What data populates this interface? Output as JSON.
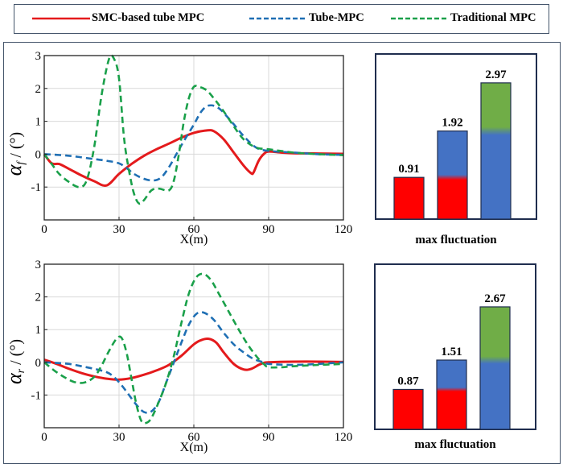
{
  "legend": {
    "items": [
      {
        "label": "SMC-based tube MPC",
        "color": "#e41a1c",
        "style": "solid"
      },
      {
        "label": "Tube-MPC",
        "color": "#1f6fb4",
        "style": "dashed"
      },
      {
        "label": "Traditional MPC",
        "color": "#1aa04a",
        "style": "dashed"
      }
    ]
  },
  "chart_data": [
    {
      "type": "line",
      "id": "front",
      "ylabel": "α_f / (°)",
      "ylabel_main": "α",
      "ylabel_sub": "f",
      "ylabel_rest": " / (°)",
      "xlabel": "X(m)",
      "xlim": [
        0,
        120
      ],
      "ylim": [
        -2,
        3
      ],
      "xticks": [
        0,
        30,
        60,
        90,
        120
      ],
      "yticks": [
        -1,
        0,
        1,
        2,
        3
      ],
      "grid": true,
      "series": [
        {
          "name": "SMC-based tube MPC",
          "color": "#e41a1c",
          "style": "solid",
          "x": [
            0,
            3,
            6,
            10,
            15,
            20,
            25,
            30,
            35,
            40,
            45,
            50,
            55,
            60,
            65,
            68,
            72,
            76,
            80,
            83,
            84,
            86,
            88,
            90,
            95,
            100,
            110,
            120
          ],
          "y": [
            0,
            -0.28,
            -0.3,
            -0.45,
            -0.65,
            -0.82,
            -0.95,
            -0.6,
            -0.3,
            -0.05,
            0.15,
            0.32,
            0.5,
            0.65,
            0.72,
            0.7,
            0.45,
            0.05,
            -0.35,
            -0.58,
            -0.55,
            -0.2,
            0,
            0.08,
            0.05,
            0.03,
            0.02,
            0.01
          ]
        },
        {
          "name": "Tube-MPC",
          "color": "#1f6fb4",
          "style": "dashed",
          "x": [
            0,
            10,
            20,
            25,
            30,
            33,
            36,
            40,
            44,
            47,
            50,
            53,
            56,
            60,
            63,
            66,
            70,
            75,
            80,
            85,
            90,
            100,
            110,
            120
          ],
          "y": [
            0,
            -0.05,
            -0.15,
            -0.2,
            -0.28,
            -0.42,
            -0.6,
            -0.75,
            -0.8,
            -0.7,
            -0.4,
            0,
            0.4,
            0.9,
            1.3,
            1.48,
            1.4,
            1.0,
            0.55,
            0.2,
            0.1,
            0.05,
            0,
            -0.02
          ]
        },
        {
          "name": "Traditional MPC",
          "color": "#1aa04a",
          "style": "dashed",
          "x": [
            0,
            3,
            6,
            10,
            14,
            17,
            20,
            23,
            26,
            28,
            30,
            32,
            34,
            36,
            38,
            40,
            43,
            46,
            50,
            52,
            54,
            56,
            58,
            60,
            62,
            65,
            68,
            72,
            76,
            80,
            85,
            90,
            100,
            110,
            120
          ],
          "y": [
            0,
            -0.3,
            -0.6,
            -0.85,
            -1.0,
            -0.8,
            0.2,
            1.8,
            2.9,
            2.9,
            2.3,
            0.5,
            -0.5,
            -1.2,
            -1.5,
            -1.4,
            -1.1,
            -1.05,
            -1.1,
            -0.8,
            0.0,
            1.0,
            1.7,
            2.05,
            2.05,
            1.95,
            1.7,
            1.3,
            0.85,
            0.45,
            0.2,
            0.15,
            0.05,
            0.0,
            -0.03
          ]
        }
      ]
    },
    {
      "type": "bar",
      "id": "front-bar",
      "xlabel": "max fluctuation",
      "categories": [
        "SMC-based tube MPC",
        "Tube-MPC",
        "Traditional MPC"
      ],
      "values": [
        0.91,
        1.92,
        2.97
      ],
      "value_labels": [
        "0.91",
        "1.92",
        "2.97"
      ],
      "colors": [
        "#ff0000",
        "#4472c4",
        "#70ad47"
      ],
      "ylim": [
        0,
        3.6
      ]
    },
    {
      "type": "line",
      "id": "rear",
      "ylabel": "α_r / (°)",
      "ylabel_main": "α",
      "ylabel_sub": "r",
      "ylabel_rest": " / (°)",
      "xlabel": "X(m)",
      "xlim": [
        0,
        120
      ],
      "ylim": [
        -2,
        3
      ],
      "xticks": [
        0,
        30,
        60,
        90,
        120
      ],
      "yticks": [
        -1,
        0,
        1,
        2,
        3
      ],
      "grid": true,
      "series": [
        {
          "name": "SMC-based tube MPC",
          "color": "#e41a1c",
          "style": "solid",
          "x": [
            0,
            5,
            10,
            15,
            20,
            25,
            30,
            35,
            40,
            45,
            50,
            55,
            60,
            63,
            66,
            69,
            72,
            76,
            80,
            83,
            86,
            88,
            90,
            100,
            110,
            120
          ],
          "y": [
            0.08,
            -0.05,
            -0.2,
            -0.33,
            -0.43,
            -0.5,
            -0.53,
            -0.48,
            -0.38,
            -0.25,
            -0.08,
            0.2,
            0.55,
            0.68,
            0.72,
            0.6,
            0.3,
            -0.05,
            -0.22,
            -0.2,
            -0.08,
            -0.02,
            0.0,
            0.02,
            0.02,
            0.01
          ]
        },
        {
          "name": "Tube-MPC",
          "color": "#1f6fb4",
          "style": "dashed",
          "x": [
            0,
            5,
            10,
            15,
            20,
            25,
            28,
            31,
            34,
            37,
            40,
            43,
            46,
            49,
            52,
            55,
            58,
            61,
            64,
            68,
            72,
            76,
            80,
            84,
            88,
            90,
            100,
            110,
            120
          ],
          "y": [
            0,
            -0.02,
            -0.05,
            -0.12,
            -0.2,
            -0.3,
            -0.45,
            -0.7,
            -1.0,
            -1.3,
            -1.52,
            -1.5,
            -1.2,
            -0.6,
            0,
            0.6,
            1.15,
            1.48,
            1.52,
            1.3,
            0.9,
            0.55,
            0.3,
            0.1,
            0.0,
            -0.05,
            -0.08,
            -0.05,
            0.0
          ]
        },
        {
          "name": "Traditional MPC",
          "color": "#1aa04a",
          "style": "dashed",
          "x": [
            0,
            4,
            8,
            12,
            16,
            20,
            23,
            26,
            29,
            31,
            33,
            35,
            37,
            39,
            41,
            43,
            46,
            49,
            52,
            55,
            58,
            61,
            64,
            67,
            70,
            74,
            78,
            82,
            86,
            88,
            90,
            95,
            100,
            110,
            120
          ],
          "y": [
            0,
            -0.25,
            -0.45,
            -0.6,
            -0.62,
            -0.45,
            -0.1,
            0.35,
            0.72,
            0.75,
            0.3,
            -0.5,
            -1.3,
            -1.8,
            -1.85,
            -1.7,
            -1.2,
            -0.6,
            0.2,
            1.2,
            2.1,
            2.6,
            2.7,
            2.5,
            2.1,
            1.55,
            1.0,
            0.5,
            0.1,
            -0.05,
            -0.15,
            -0.15,
            -0.12,
            -0.08,
            -0.05
          ]
        }
      ]
    },
    {
      "type": "bar",
      "id": "rear-bar",
      "xlabel": "max fluctuation",
      "categories": [
        "SMC-based tube MPC",
        "Tube-MPC",
        "Traditional MPC"
      ],
      "values": [
        0.87,
        1.51,
        2.67
      ],
      "value_labels": [
        "0.87",
        "1.51",
        "2.67"
      ],
      "colors": [
        "#ff0000",
        "#4472c4",
        "#70ad47"
      ],
      "ylim": [
        0,
        3.6
      ]
    }
  ]
}
